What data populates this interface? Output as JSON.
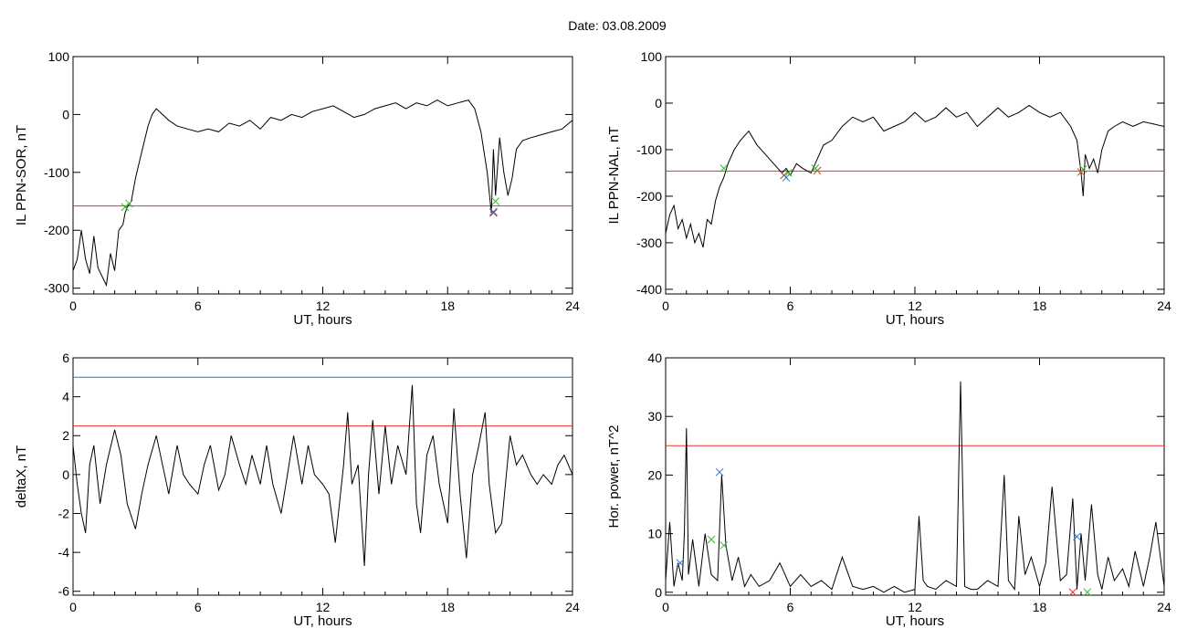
{
  "figure": {
    "title": "Date:  03.08.2009"
  },
  "colors": {
    "trace": "#000000",
    "threshold": "#e8302a",
    "fit": "#2f6fd6",
    "cross_red": "#e8302a",
    "cross_green": "#33bb33",
    "cross_blue": "#2f6fd6"
  },
  "chart_data": [
    {
      "type": "line",
      "xlabel": "UT, hours",
      "ylabel": "IL PPN-SOR, nT",
      "xlim": [
        0,
        24
      ],
      "ylim": [
        -310,
        100
      ],
      "xticks": [
        0,
        6,
        12,
        18,
        24
      ],
      "yticks": [
        -300,
        -200,
        -100,
        0,
        100
      ],
      "grid": false,
      "series": [
        {
          "values_x": [
            0,
            0.2,
            0.4,
            0.6,
            0.8,
            1.0,
            1.2,
            1.4,
            1.6,
            1.8,
            2.0,
            2.2,
            2.4,
            2.5,
            2.6,
            2.8,
            3.0,
            3.2,
            3.4,
            3.6,
            3.8,
            4.0,
            4.3,
            4.6,
            5.0,
            5.5,
            6.0,
            6.5,
            7.0,
            7.5,
            8.0,
            8.5,
            9.0,
            9.5,
            10.0,
            10.5,
            11.0,
            11.5,
            12.0,
            12.5,
            13.0,
            13.5,
            14.0,
            14.5,
            15.0,
            15.5,
            16.0,
            16.5,
            17.0,
            17.5,
            18.0,
            18.5,
            19.0,
            19.3,
            19.6,
            19.9,
            20.1,
            20.2,
            20.3,
            20.5,
            20.7,
            20.9,
            21.1,
            21.3,
            21.6,
            22.0,
            22.5,
            23.0,
            23.5,
            24.0
          ],
          "values_y": [
            -270,
            -250,
            -200,
            -250,
            -275,
            -210,
            -265,
            -280,
            -295,
            -240,
            -270,
            -200,
            -190,
            -170,
            -160,
            -150,
            -110,
            -80,
            -50,
            -20,
            0,
            10,
            0,
            -10,
            -20,
            -25,
            -30,
            -25,
            -30,
            -15,
            -20,
            -10,
            -25,
            -5,
            -10,
            0,
            -5,
            5,
            10,
            15,
            5,
            -5,
            0,
            10,
            15,
            20,
            10,
            20,
            15,
            25,
            15,
            20,
            25,
            10,
            -30,
            -100,
            -170,
            -60,
            -140,
            -40,
            -100,
            -140,
            -110,
            -60,
            -45,
            -40,
            -35,
            -30,
            -25,
            -10
          ]
        }
      ],
      "threshold": -158,
      "markers": [
        {
          "x": 2.5,
          "y": -160,
          "color": "green"
        },
        {
          "x": 2.7,
          "y": -154,
          "color": "green"
        },
        {
          "x": 20.2,
          "y": -170,
          "color": "red"
        },
        {
          "x": 20.2,
          "y": -168,
          "color": "blue"
        },
        {
          "x": 20.3,
          "y": -150,
          "color": "green"
        }
      ]
    },
    {
      "type": "line",
      "xlabel": "UT, hours",
      "ylabel": "IL PPN-NAL, nT",
      "xlim": [
        0,
        24
      ],
      "ylim": [
        -410,
        100
      ],
      "xticks": [
        0,
        6,
        12,
        18,
        24
      ],
      "yticks": [
        -400,
        -300,
        -200,
        -100,
        0,
        100
      ],
      "grid": false,
      "series": [
        {
          "values_x": [
            0,
            0.2,
            0.4,
            0.6,
            0.8,
            1.0,
            1.2,
            1.4,
            1.6,
            1.8,
            2.0,
            2.2,
            2.4,
            2.6,
            2.8,
            3.0,
            3.3,
            3.6,
            4.0,
            4.4,
            4.8,
            5.2,
            5.6,
            5.8,
            6.0,
            6.3,
            6.6,
            7.0,
            7.3,
            7.6,
            8.0,
            8.5,
            9.0,
            9.5,
            10.0,
            10.5,
            11.0,
            11.5,
            12.0,
            12.5,
            13.0,
            13.5,
            14.0,
            14.5,
            15.0,
            15.5,
            16.0,
            16.5,
            17.0,
            17.5,
            18.0,
            18.5,
            19.0,
            19.5,
            19.8,
            20.0,
            20.1,
            20.2,
            20.4,
            20.6,
            20.8,
            21.0,
            21.3,
            21.6,
            22.0,
            22.5,
            23.0,
            23.5,
            24.0
          ],
          "values_y": [
            -280,
            -240,
            -220,
            -270,
            -250,
            -290,
            -260,
            -300,
            -280,
            -310,
            -250,
            -260,
            -210,
            -180,
            -160,
            -130,
            -100,
            -80,
            -60,
            -90,
            -110,
            -130,
            -150,
            -140,
            -155,
            -130,
            -140,
            -150,
            -120,
            -90,
            -80,
            -50,
            -30,
            -40,
            -30,
            -60,
            -50,
            -40,
            -20,
            -40,
            -30,
            -10,
            -30,
            -20,
            -50,
            -30,
            -10,
            -30,
            -20,
            -5,
            -20,
            -30,
            -20,
            -50,
            -80,
            -150,
            -200,
            -110,
            -140,
            -120,
            -150,
            -100,
            -60,
            -50,
            -40,
            -50,
            -40,
            -45,
            -50
          ]
        }
      ],
      "threshold": -146,
      "markers": [
        {
          "x": 2.8,
          "y": -140,
          "color": "green"
        },
        {
          "x": 5.7,
          "y": -155,
          "color": "red"
        },
        {
          "x": 5.8,
          "y": -160,
          "color": "blue"
        },
        {
          "x": 5.9,
          "y": -150,
          "color": "green"
        },
        {
          "x": 7.3,
          "y": -145,
          "color": "red"
        },
        {
          "x": 7.2,
          "y": -140,
          "color": "green"
        },
        {
          "x": 20.0,
          "y": -148,
          "color": "red"
        },
        {
          "x": 20.1,
          "y": -142,
          "color": "green"
        }
      ]
    },
    {
      "type": "line",
      "xlabel": "UT, hours",
      "ylabel": "deltaX, nT",
      "xlim": [
        0,
        24
      ],
      "ylim": [
        -6.2,
        6
      ],
      "xticks": [
        0,
        6,
        12,
        18,
        24
      ],
      "yticks": [
        -6,
        -4,
        -2,
        0,
        2,
        4,
        6
      ],
      "grid": false,
      "series": [
        {
          "values_x": [
            0,
            0.2,
            0.4,
            0.6,
            0.8,
            1.0,
            1.3,
            1.6,
            2.0,
            2.3,
            2.6,
            3.0,
            3.3,
            3.6,
            4.0,
            4.3,
            4.6,
            5.0,
            5.3,
            5.6,
            6.0,
            6.3,
            6.6,
            7.0,
            7.3,
            7.6,
            8.0,
            8.3,
            8.6,
            9.0,
            9.3,
            9.6,
            10.0,
            10.3,
            10.6,
            11.0,
            11.3,
            11.6,
            12.0,
            12.3,
            12.6,
            13.0,
            13.2,
            13.4,
            13.7,
            14.0,
            14.2,
            14.4,
            14.7,
            15.0,
            15.3,
            15.6,
            16.0,
            16.3,
            16.5,
            16.7,
            17.0,
            17.3,
            17.6,
            18.0,
            18.3,
            18.6,
            18.9,
            19.2,
            19.5,
            19.8,
            20.0,
            20.3,
            20.6,
            21.0,
            21.3,
            21.6,
            22.0,
            22.3,
            22.6,
            23.0,
            23.3,
            23.6,
            24.0
          ],
          "values_y": [
            1.5,
            -0.5,
            -2.0,
            -3.0,
            0.5,
            1.5,
            -1.5,
            0.5,
            2.3,
            1.0,
            -1.5,
            -2.8,
            -1.0,
            0.5,
            2.0,
            0.5,
            -1.0,
            1.5,
            0.0,
            -0.5,
            -1.0,
            0.5,
            1.5,
            -0.8,
            0.0,
            2.0,
            0.5,
            -0.5,
            1.0,
            -0.5,
            1.5,
            -0.5,
            -2.0,
            0.0,
            2.0,
            -0.5,
            1.5,
            0.0,
            -0.5,
            -1.0,
            -3.5,
            0.5,
            3.2,
            -0.5,
            0.5,
            -4.7,
            0.0,
            2.8,
            -1.0,
            2.5,
            -0.5,
            1.5,
            0.0,
            4.6,
            -1.5,
            -3.0,
            1.0,
            2.0,
            -0.5,
            -2.5,
            3.4,
            -1.0,
            -4.3,
            0.0,
            1.5,
            3.2,
            -0.5,
            -3.0,
            -2.5,
            2.0,
            0.5,
            1.0,
            0.0,
            -0.5,
            0.0,
            -0.5,
            0.5,
            1.0,
            0.0
          ]
        }
      ],
      "thresholds": [
        {
          "y": 5.0,
          "color": "blue"
        },
        {
          "y": 2.5,
          "color": "red"
        }
      ]
    },
    {
      "type": "line",
      "xlabel": "UT, hours",
      "ylabel": "Hor. power, nT^2",
      "xlim": [
        0,
        24
      ],
      "ylim": [
        -0.5,
        40
      ],
      "xticks": [
        0,
        6,
        12,
        18,
        24
      ],
      "yticks": [
        0,
        10,
        20,
        30,
        40
      ],
      "grid": false,
      "series": [
        {
          "values_x": [
            0,
            0.2,
            0.4,
            0.6,
            0.8,
            0.9,
            1.0,
            1.1,
            1.3,
            1.6,
            1.9,
            2.2,
            2.5,
            2.7,
            2.9,
            3.2,
            3.5,
            3.8,
            4.1,
            4.5,
            5.0,
            5.5,
            6.0,
            6.5,
            7.0,
            7.5,
            8.0,
            8.5,
            9.0,
            9.5,
            10.0,
            10.5,
            11.0,
            11.5,
            12.0,
            12.2,
            12.4,
            12.6,
            13.0,
            13.5,
            14.0,
            14.2,
            14.4,
            14.7,
            15.0,
            15.5,
            16.0,
            16.3,
            16.5,
            16.8,
            17.0,
            17.3,
            17.6,
            18.0,
            18.3,
            18.6,
            19.0,
            19.3,
            19.6,
            19.8,
            20.0,
            20.2,
            20.5,
            20.8,
            21.0,
            21.3,
            21.6,
            22.0,
            22.3,
            22.6,
            23.0,
            23.3,
            23.6,
            24.0
          ],
          "values_y": [
            2,
            12,
            1,
            5,
            2,
            10,
            28,
            3,
            9,
            1,
            10,
            3,
            2,
            20,
            8,
            2,
            6,
            1,
            3,
            1,
            2,
            5,
            1,
            3,
            1,
            2,
            0.5,
            6,
            1,
            0.5,
            1,
            0,
            1,
            0,
            0.5,
            13,
            2,
            1,
            0.5,
            2,
            1,
            36,
            1,
            0.5,
            0.5,
            2,
            1,
            20,
            2,
            0.5,
            13,
            3,
            6,
            1,
            5,
            18,
            2,
            3,
            16,
            0.5,
            10,
            2,
            15,
            3,
            0.5,
            6,
            2,
            4,
            1,
            7,
            1,
            6,
            12,
            1
          ]
        }
      ],
      "threshold": 25,
      "markers": [
        {
          "x": 0.7,
          "y": 5,
          "color": "blue"
        },
        {
          "x": 2.2,
          "y": 9,
          "color": "green"
        },
        {
          "x": 2.6,
          "y": 20.5,
          "color": "blue"
        },
        {
          "x": 2.8,
          "y": 8,
          "color": "green"
        },
        {
          "x": 19.6,
          "y": 0,
          "color": "red"
        },
        {
          "x": 19.8,
          "y": 9.5,
          "color": "blue"
        },
        {
          "x": 20.3,
          "y": 0,
          "color": "green"
        }
      ]
    }
  ]
}
